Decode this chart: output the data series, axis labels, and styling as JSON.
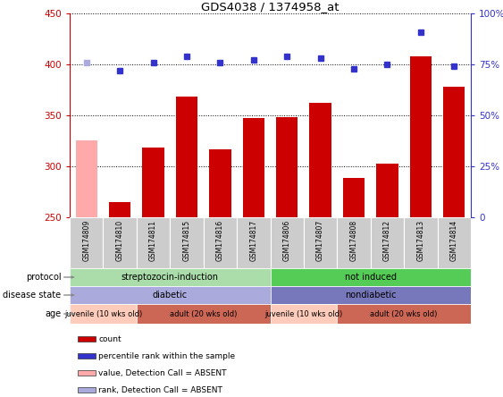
{
  "title": "GDS4038 / 1374958_at",
  "samples": [
    "GSM174809",
    "GSM174810",
    "GSM174811",
    "GSM174815",
    "GSM174816",
    "GSM174817",
    "GSM174806",
    "GSM174807",
    "GSM174808",
    "GSM174812",
    "GSM174813",
    "GSM174814"
  ],
  "counts": [
    325,
    265,
    318,
    368,
    317,
    347,
    348,
    362,
    289,
    303,
    408,
    378
  ],
  "percentiles": [
    76,
    72,
    76,
    79,
    76,
    77,
    79,
    78,
    73,
    75,
    91,
    74
  ],
  "absent_count": [
    true,
    false,
    false,
    false,
    false,
    false,
    false,
    false,
    false,
    false,
    false,
    false
  ],
  "absent_rank": [
    true,
    false,
    false,
    false,
    false,
    false,
    false,
    false,
    false,
    false,
    false,
    false
  ],
  "ylim_left": [
    250,
    450
  ],
  "ylim_right": [
    0,
    100
  ],
  "yticks_left": [
    250,
    300,
    350,
    400,
    450
  ],
  "yticks_right": [
    0,
    25,
    50,
    75,
    100
  ],
  "color_bar_normal": "#cc0000",
  "color_bar_absent": "#ffaaaa",
  "color_dot_normal": "#3333cc",
  "color_dot_absent": "#aaaadd",
  "protocol_groups": [
    {
      "label": "streptozocin-induction",
      "start": 0,
      "end": 6,
      "color": "#aaddaa"
    },
    {
      "label": "not induced",
      "start": 6,
      "end": 12,
      "color": "#55cc55"
    }
  ],
  "disease_groups": [
    {
      "label": "diabetic",
      "start": 0,
      "end": 6,
      "color": "#aaaadd"
    },
    {
      "label": "nondiabetic",
      "start": 6,
      "end": 12,
      "color": "#7777bb"
    }
  ],
  "age_groups": [
    {
      "label": "juvenile (10 wks old)",
      "start": 0,
      "end": 2,
      "color": "#ffccbb"
    },
    {
      "label": "adult (20 wks old)",
      "start": 2,
      "end": 6,
      "color": "#cc6655"
    },
    {
      "label": "juvenile (10 wks old)",
      "start": 6,
      "end": 8,
      "color": "#ffccbb"
    },
    {
      "label": "adult (20 wks old)",
      "start": 8,
      "end": 12,
      "color": "#cc6655"
    }
  ],
  "legend_items": [
    {
      "label": "count",
      "color": "#cc0000"
    },
    {
      "label": "percentile rank within the sample",
      "color": "#3333cc"
    },
    {
      "label": "value, Detection Call = ABSENT",
      "color": "#ffaaaa"
    },
    {
      "label": "rank, Detection Call = ABSENT",
      "color": "#aaaadd"
    }
  ],
  "row_labels": [
    "protocol",
    "disease state",
    "age"
  ],
  "background_color": "#ffffff",
  "tick_color_left": "#cc0000",
  "tick_color_right": "#3333cc"
}
